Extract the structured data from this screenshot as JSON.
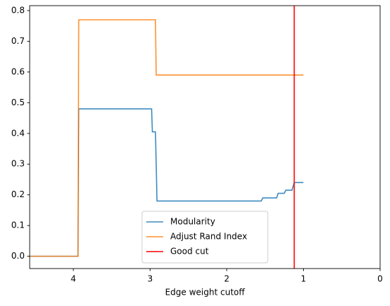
{
  "chart_data": {
    "type": "line",
    "xlabel": "Edge weight cutoff",
    "x": [
      4.57,
      3.94,
      3.93,
      2.98,
      2.97,
      2.93,
      2.92,
      2.91,
      1.55,
      1.53,
      1.35,
      1.33,
      1.25,
      1.23,
      1.15,
      1.12,
      1.0
    ],
    "series": [
      {
        "name": "Modularity",
        "color": "#1f77b4",
        "values": [
          0,
          0,
          0.48,
          0.48,
          0.405,
          0.405,
          0.3,
          0.18,
          0.18,
          0.19,
          0.19,
          0.205,
          0.205,
          0.215,
          0.215,
          0.24,
          0.24
        ]
      },
      {
        "name": "Adjust Rand Index",
        "color": "#ff7f0e",
        "values": [
          0,
          0,
          0.77,
          0.77,
          0.77,
          0.77,
          0.59,
          0.59,
          0.59,
          0.59,
          0.59,
          0.59,
          0.59,
          0.59,
          0.59,
          0.59,
          0.59
        ]
      }
    ],
    "vlines": [
      {
        "name": "Good cut",
        "color": "#ff0000",
        "x": 1.12
      }
    ],
    "xlim": [
      4.57,
      0
    ],
    "ylim": [
      -0.04,
      0.816
    ],
    "xticks": [
      4,
      3,
      2,
      1,
      0
    ],
    "yticks": [
      {
        "value": 0,
        "label": "0.0"
      },
      0.1,
      0.2,
      0.3,
      0.4,
      0.5,
      0.6,
      0.7,
      0.8
    ],
    "legend": "lower center"
  }
}
